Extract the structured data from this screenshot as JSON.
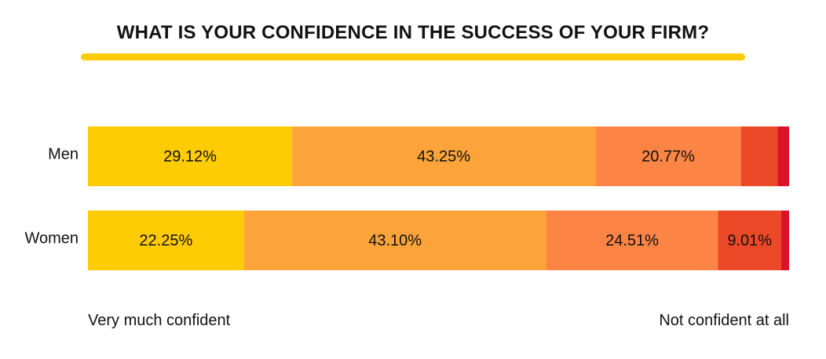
{
  "chart_data": {
    "type": "bar",
    "orientation": "horizontal",
    "stacked": true,
    "title": "WHAT IS YOUR CONFIDENCE IN THE SUCCESS OF YOUR FIRM?",
    "categories": [
      "Men",
      "Women"
    ],
    "series": [
      {
        "values": [
          29.12,
          22.25
        ],
        "color": "#FFCB05"
      },
      {
        "values": [
          43.25,
          43.1
        ],
        "color": "#FCA43A"
      },
      {
        "values": [
          20.77,
          24.51
        ],
        "color": "#FC8444"
      },
      {
        "values": [
          5.2,
          9.01
        ],
        "color": "#EB4828"
      },
      {
        "values": [
          1.66,
          1.13
        ],
        "color": "#DB1228"
      }
    ],
    "data_labels": [
      [
        "29.12%",
        "43.25%",
        "20.77%",
        "",
        ""
      ],
      [
        "22.25%",
        "43.10%",
        "24.51%",
        "9.01%",
        ""
      ]
    ],
    "xlim": [
      0,
      100
    ],
    "scale_left_label": "Very much confident",
    "scale_right_label": "Not confident at all",
    "grid": false,
    "legend": "none"
  }
}
